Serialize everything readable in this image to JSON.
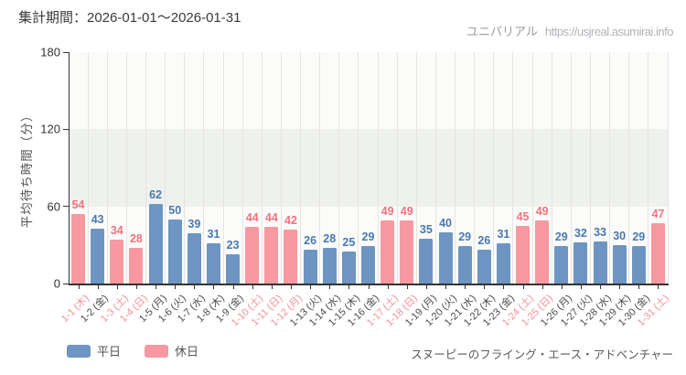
{
  "header": {
    "period": "集計期間：2026-01-01～2026-01-31"
  },
  "watermark": {
    "brand": "ユニバリアル",
    "url": "https://usjreal.asumirai.info"
  },
  "legend": {
    "weekday_label": "平日",
    "holiday_label": "休日"
  },
  "footer": {
    "attraction": "スヌーピーのフライング・エース・アドベンチャー"
  },
  "colors": {
    "weekday_bar": "#6e95c1",
    "holiday_bar": "#f898a0",
    "weekday_value": "#4878b0",
    "holiday_value": "#f3717f",
    "weekday_tick": "#4a4a4a",
    "holiday_tick": "#f2929a",
    "band": "#eff1ee",
    "grid": "#e4e4e4",
    "axis": "#333333"
  },
  "chart_data": {
    "type": "bar",
    "title": "集計期間：2026-01-01～2026-01-31",
    "xlabel": "",
    "ylabel": "平均待ち時間（分）",
    "ylim": [
      0,
      180
    ],
    "yticks": [
      0,
      60,
      120,
      180
    ],
    "grid": true,
    "legend_position": "bottom-left",
    "legend_entries": [
      "平日",
      "休日"
    ],
    "categories": [
      "1-1 (木)",
      "1-2 (金)",
      "1-3 (土)",
      "1-4 (日)",
      "1-5 (月)",
      "1-6 (火)",
      "1-7 (水)",
      "1-8 (木)",
      "1-9 (金)",
      "1-10 (土)",
      "1-11 (日)",
      "1-12 (月)",
      "1-13 (火)",
      "1-14 (水)",
      "1-15 (木)",
      "1-16 (金)",
      "1-17 (土)",
      "1-18 (日)",
      "1-19 (月)",
      "1-20 (火)",
      "1-21 (水)",
      "1-22 (木)",
      "1-23 (金)",
      "1-24 (土)",
      "1-25 (日)",
      "1-26 (月)",
      "1-27 (火)",
      "1-28 (水)",
      "1-29 (木)",
      "1-30 (金)",
      "1-31 (土)"
    ],
    "values": [
      54,
      43,
      34,
      28,
      62,
      50,
      39,
      31,
      23,
      44,
      44,
      42,
      26,
      28,
      25,
      29,
      49,
      49,
      35,
      40,
      29,
      26,
      31,
      45,
      49,
      29,
      32,
      33,
      30,
      29,
      47
    ],
    "day_types": [
      "holiday",
      "weekday",
      "holiday",
      "holiday",
      "weekday",
      "weekday",
      "weekday",
      "weekday",
      "weekday",
      "holiday",
      "holiday",
      "holiday",
      "weekday",
      "weekday",
      "weekday",
      "weekday",
      "holiday",
      "holiday",
      "weekday",
      "weekday",
      "weekday",
      "weekday",
      "weekday",
      "holiday",
      "holiday",
      "weekday",
      "weekday",
      "weekday",
      "weekday",
      "weekday",
      "holiday"
    ]
  }
}
